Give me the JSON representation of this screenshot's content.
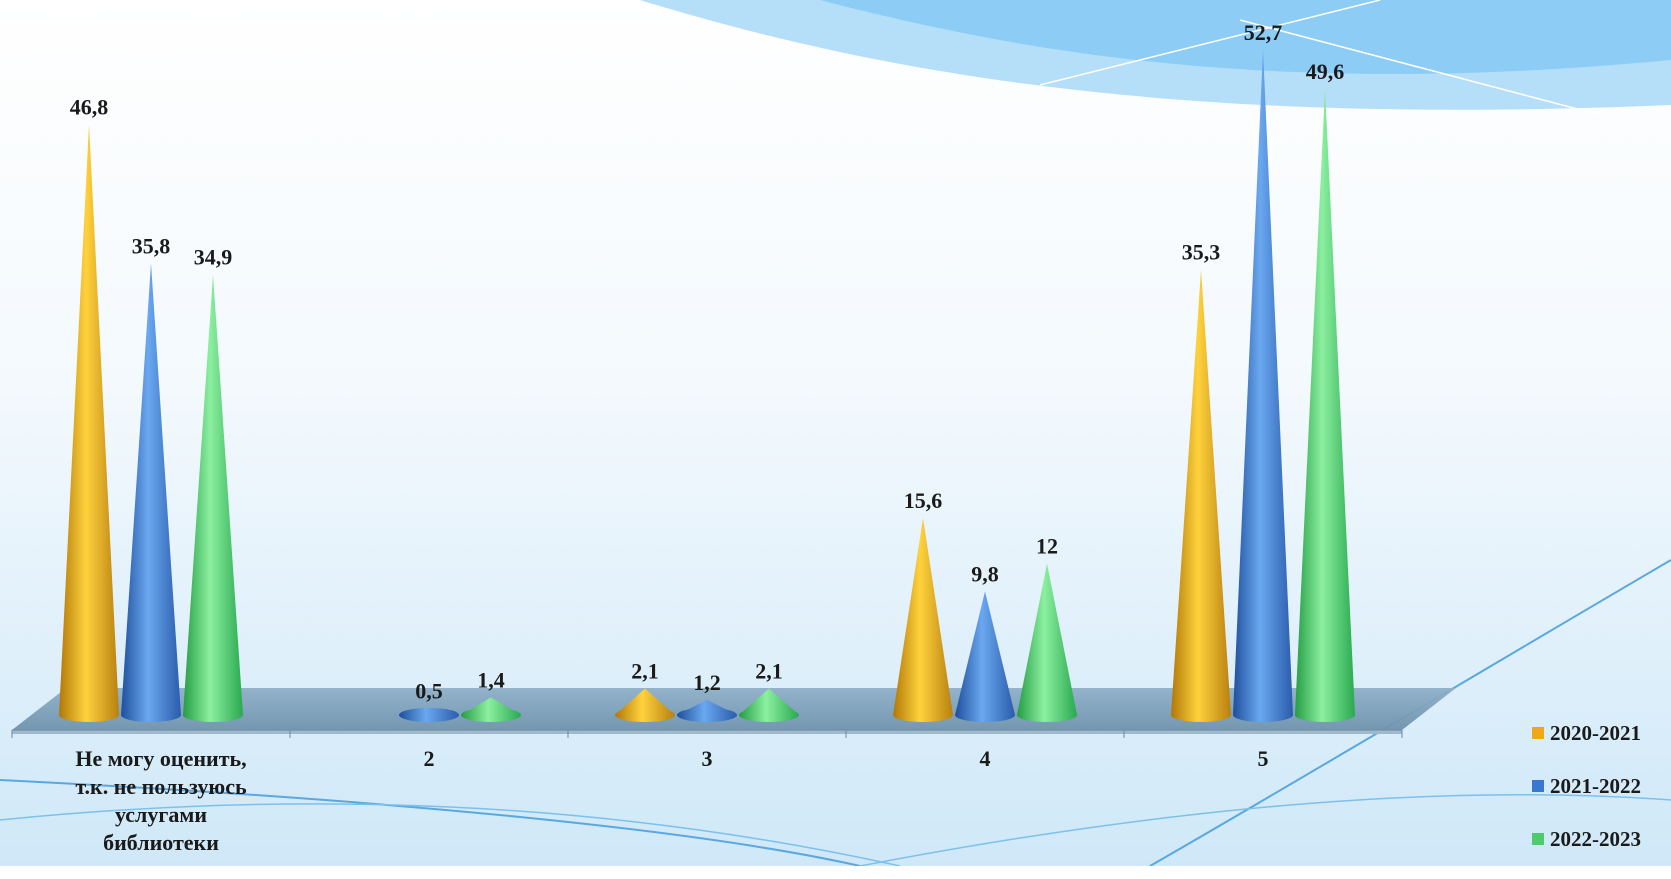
{
  "chart_data": {
    "type": "bar",
    "bar_shape": "cone-3d",
    "categories": [
      "Не могу оценить, т.к. не пользуюсь услугами библиотеки",
      "2",
      "3",
      "4",
      "5"
    ],
    "category_label_lines": [
      [
        "Не могу оценить,",
        "т.к. не пользуюсь",
        "услугами",
        "библиотеки"
      ],
      [
        "2"
      ],
      [
        "3"
      ],
      [
        "4"
      ],
      [
        "5"
      ]
    ],
    "series": [
      {
        "name": "2020-2021",
        "color": "#f0a818",
        "values": [
          46.8,
          null,
          2.1,
          15.6,
          35.3
        ],
        "labels": [
          "46,8",
          "",
          "2,1",
          "15,6",
          "35,3"
        ]
      },
      {
        "name": "2021-2022",
        "color": "#3a78d0",
        "values": [
          35.8,
          0.5,
          1.2,
          9.8,
          52.7
        ],
        "labels": [
          "35,8",
          "0,5",
          "1,2",
          "9,8",
          "52,7"
        ]
      },
      {
        "name": "2022-2023",
        "color": "#4ecb6a",
        "values": [
          34.9,
          1.4,
          2.1,
          12,
          49.6
        ],
        "labels": [
          "34,9",
          "1,4",
          "2,1",
          "12",
          "49,6"
        ]
      }
    ],
    "ylim": [
      0,
      60
    ],
    "grid": false,
    "legend_position": "bottom-right",
    "title": "",
    "xlabel": "",
    "ylabel": ""
  }
}
